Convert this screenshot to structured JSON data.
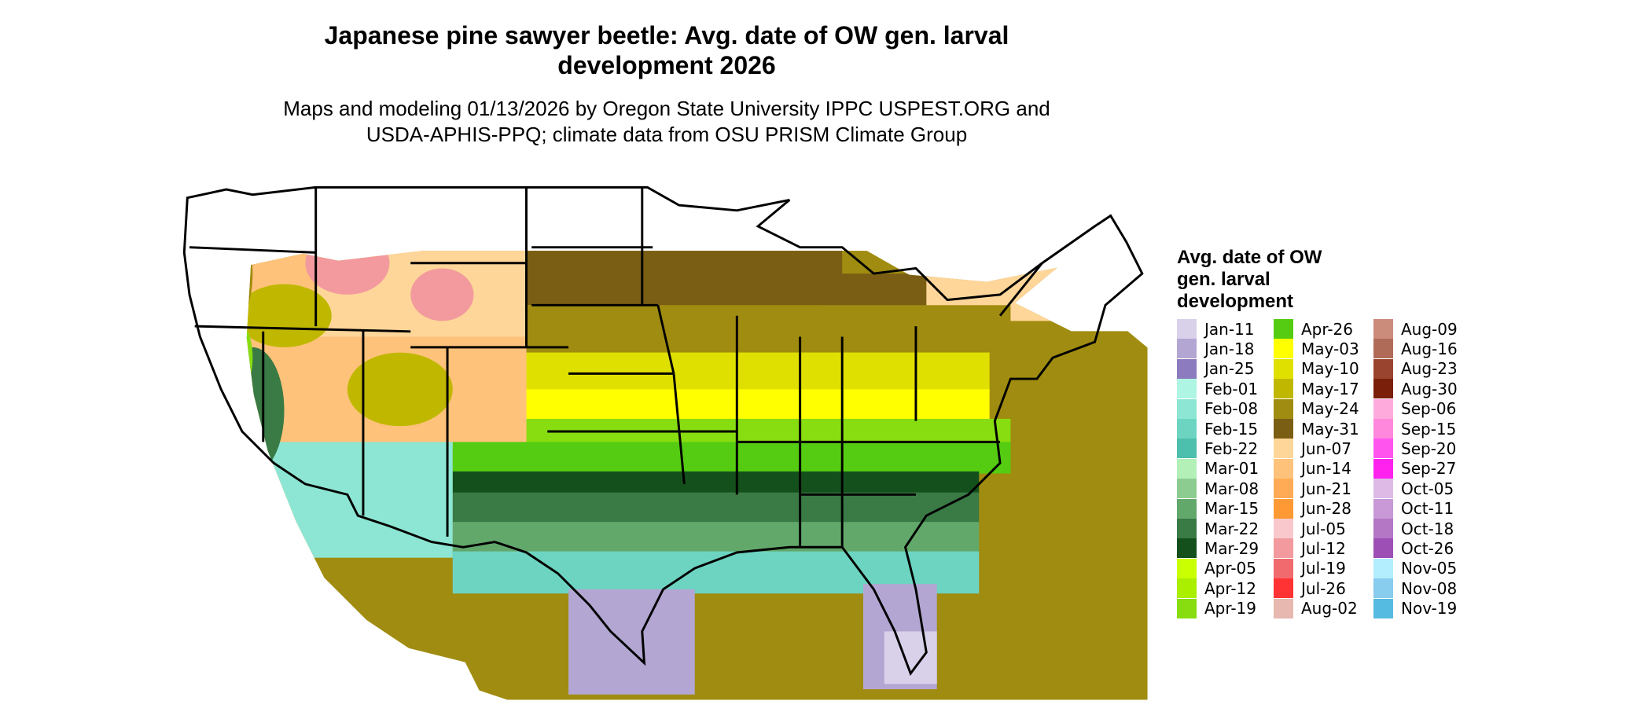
{
  "title": "Japanese pine sawyer beetle: Avg. date of OW gen. larval development 2026",
  "subtitle": "Maps and modeling 01/13/2026 by Oregon State University IPPC USPEST.ORG and USDA-APHIS-PPQ; climate data from OSU PRISM Climate Group",
  "legend": {
    "title": "Avg. date of OW gen. larval development",
    "items": [
      {
        "label": "Jan-11",
        "color": "#d9d0ea"
      },
      {
        "label": "Jan-18",
        "color": "#b3a6d2"
      },
      {
        "label": "Jan-25",
        "color": "#8c7bbf"
      },
      {
        "label": "Feb-01",
        "color": "#aff5e3"
      },
      {
        "label": "Feb-08",
        "color": "#8de6d3"
      },
      {
        "label": "Feb-15",
        "color": "#6dd4c2"
      },
      {
        "label": "Feb-22",
        "color": "#4dbfad"
      },
      {
        "label": "Mar-01",
        "color": "#b2f0b8"
      },
      {
        "label": "Mar-08",
        "color": "#8ccc90"
      },
      {
        "label": "Mar-15",
        "color": "#62a86b"
      },
      {
        "label": "Mar-22",
        "color": "#3a7a45"
      },
      {
        "label": "Mar-29",
        "color": "#14501c"
      },
      {
        "label": "Apr-05",
        "color": "#c9ff00"
      },
      {
        "label": "Apr-12",
        "color": "#aaee00"
      },
      {
        "label": "Apr-19",
        "color": "#88dd11"
      },
      {
        "label": "Apr-26",
        "color": "#55cc11"
      },
      {
        "label": "May-03",
        "color": "#ffff00"
      },
      {
        "label": "May-10",
        "color": "#e0e000"
      },
      {
        "label": "May-17",
        "color": "#c0b800"
      },
      {
        "label": "May-24",
        "color": "#a08c10"
      },
      {
        "label": "May-31",
        "color": "#7a5e14"
      },
      {
        "label": "Jun-07",
        "color": "#ffd699"
      },
      {
        "label": "Jun-14",
        "color": "#ffc27a"
      },
      {
        "label": "Jun-21",
        "color": "#ffab55"
      },
      {
        "label": "Jun-28",
        "color": "#ff9933"
      },
      {
        "label": "Jul-05",
        "color": "#f8c8cc"
      },
      {
        "label": "Jul-12",
        "color": "#f29a9e"
      },
      {
        "label": "Jul-19",
        "color": "#f06a6e"
      },
      {
        "label": "Jul-26",
        "color": "#ff3333"
      },
      {
        "label": "Aug-02",
        "color": "#e6b8b0"
      },
      {
        "label": "Aug-09",
        "color": "#cc8c7c"
      },
      {
        "label": "Aug-16",
        "color": "#b06a58"
      },
      {
        "label": "Aug-23",
        "color": "#99442e"
      },
      {
        "label": "Aug-30",
        "color": "#7a1f0a"
      },
      {
        "label": "Sep-06",
        "color": "#ffaadd"
      },
      {
        "label": "Sep-15",
        "color": "#ff88dd"
      },
      {
        "label": "Sep-20",
        "color": "#ff55ee"
      },
      {
        "label": "Sep-27",
        "color": "#ff22ee"
      },
      {
        "label": "Oct-05",
        "color": "#ddbbe6"
      },
      {
        "label": "Oct-11",
        "color": "#c899d6"
      },
      {
        "label": "Oct-18",
        "color": "#b377c6"
      },
      {
        "label": "Oct-26",
        "color": "#9e4fb6"
      },
      {
        "label": "Nov-05",
        "color": "#b3eeff"
      },
      {
        "label": "Nov-08",
        "color": "#88ccee"
      },
      {
        "label": "Nov-19",
        "color": "#55bbe0"
      }
    ]
  }
}
